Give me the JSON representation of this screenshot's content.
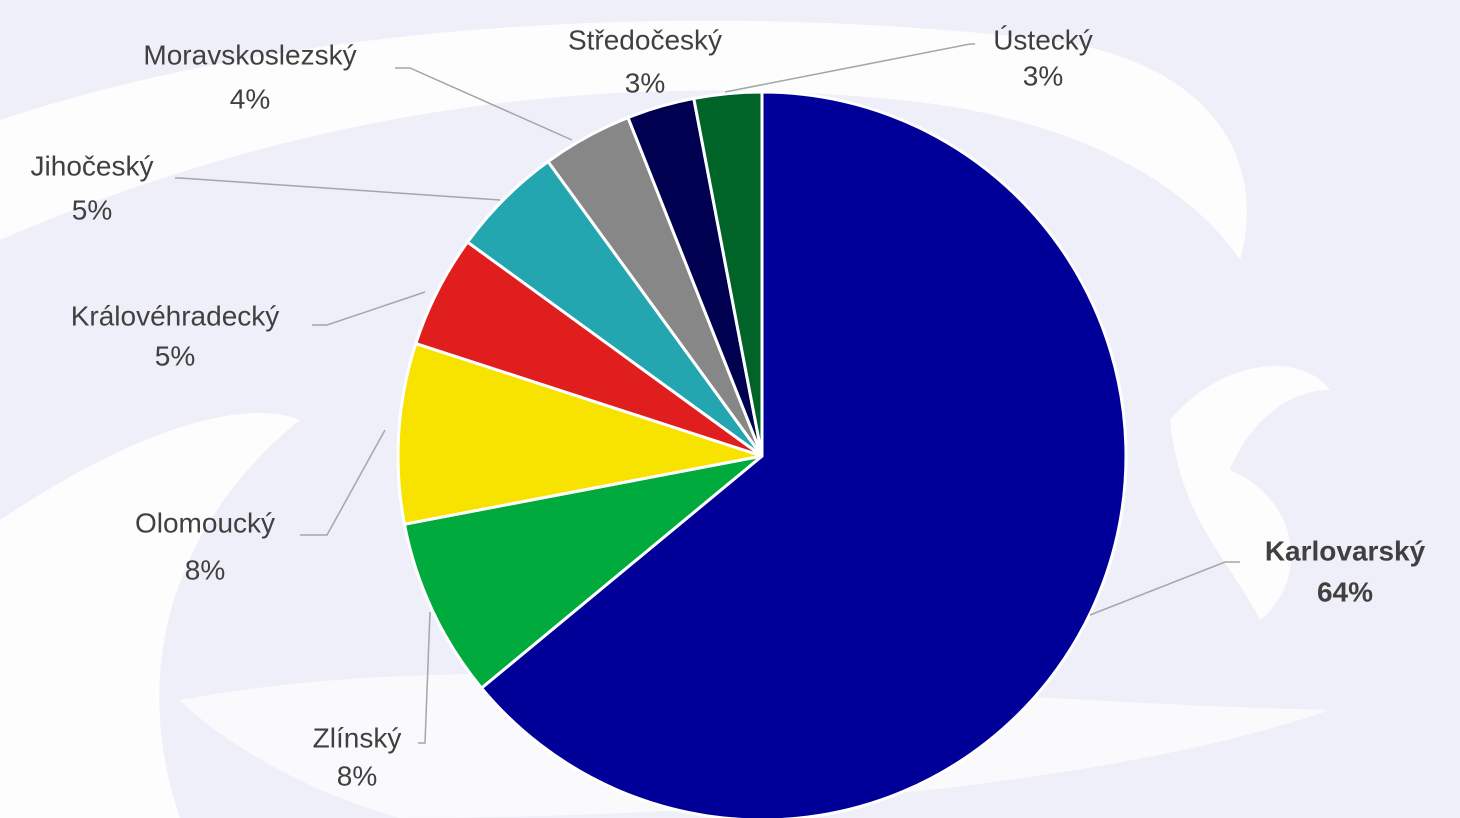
{
  "chart_data": {
    "type": "pie",
    "categories": [
      "Karlovarský",
      "Zlínský",
      "Olomoucký",
      "Královéhradecký",
      "Jihočeský",
      "Moravskoslezský",
      "Středočeský",
      "Ústecký"
    ],
    "values": [
      64,
      8,
      8,
      5,
      5,
      4,
      3,
      3
    ],
    "value_labels": [
      "64%",
      "8%",
      "8%",
      "5%",
      "5%",
      "4%",
      "3%",
      "3%"
    ],
    "colors": [
      "#000099",
      "#00aa3c",
      "#f7e200",
      "#e11e1e",
      "#24a6b0",
      "#878787",
      "#000050",
      "#006428"
    ]
  }
}
